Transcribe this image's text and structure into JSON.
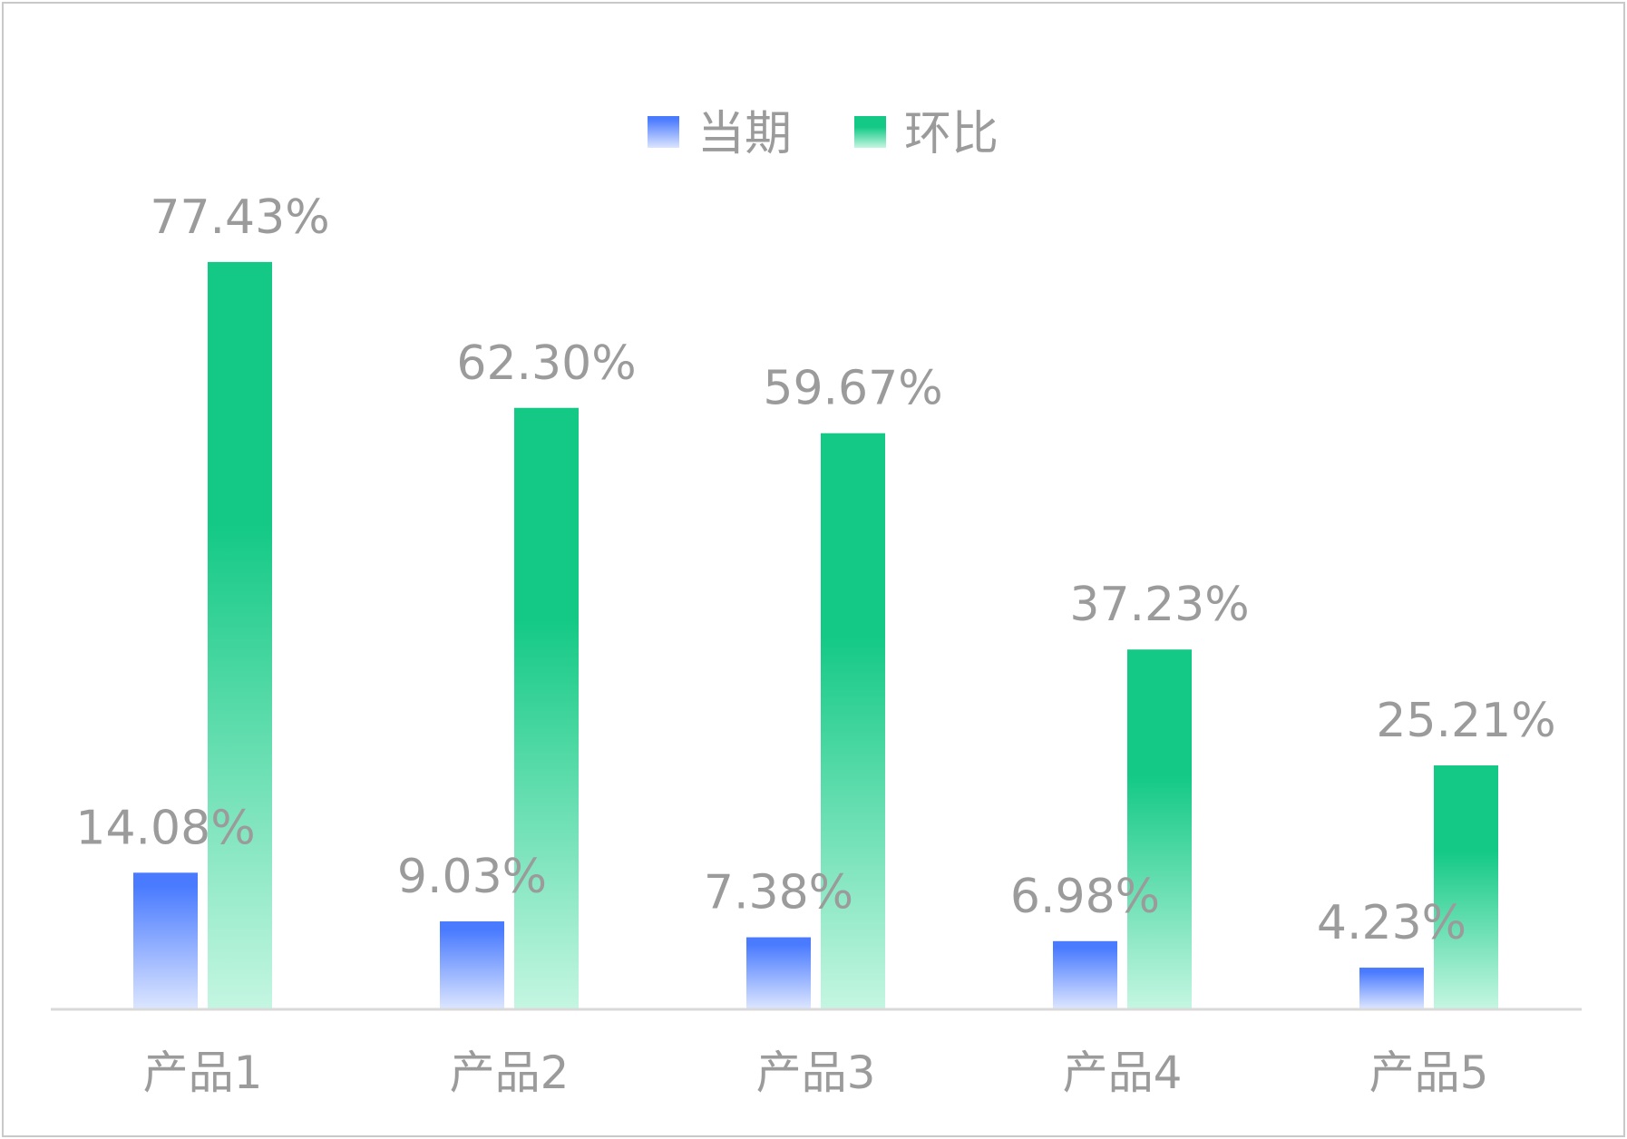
{
  "chart_data": {
    "type": "bar",
    "categories": [
      "产品1",
      "产品2",
      "产品3",
      "产品4",
      "产品5"
    ],
    "series": [
      {
        "name": "当期",
        "values": [
          14.08,
          9.03,
          7.38,
          6.98,
          4.23
        ],
        "labels": [
          "14.08%",
          "9.03%",
          "7.38%",
          "6.98%",
          "4.23%"
        ],
        "color_top": "#4a7bff",
        "color_bottom": "#dbe5ff"
      },
      {
        "name": "环比",
        "values": [
          77.43,
          62.3,
          59.67,
          37.23,
          25.21
        ],
        "labels": [
          "77.43%",
          "62.30%",
          "59.67%",
          "37.23%",
          "25.21%"
        ],
        "color_top": "#13c985",
        "color_bottom": "#c4f6e2"
      }
    ],
    "ylim": [
      0,
      100
    ],
    "grid": false,
    "legend": "top-center",
    "text_color": "#9b9b9b",
    "axis_color": "#d9d9d9"
  }
}
